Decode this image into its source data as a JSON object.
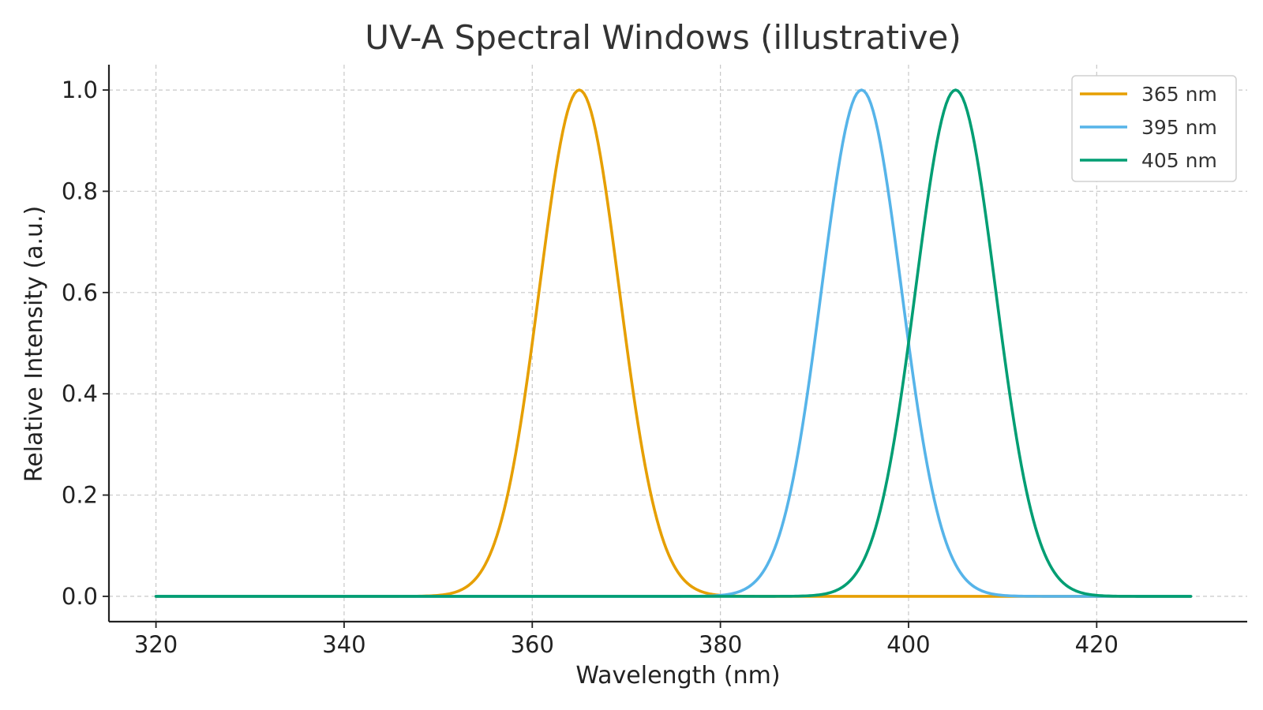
{
  "chart_data": {
    "type": "line",
    "title": "UV-A Spectral Windows (illustrative)",
    "xlabel": "Wavelength (nm)",
    "ylabel": "Relative Intensity (a.u.)",
    "xlim": [
      315,
      436
    ],
    "ylim": [
      -0.05,
      1.05
    ],
    "x_range": [
      320,
      430
    ],
    "xticks": [
      320,
      340,
      360,
      380,
      400,
      420
    ],
    "yticks": [
      0.0,
      0.2,
      0.4,
      0.6,
      0.8,
      1.0
    ],
    "xtick_labels": [
      "320",
      "340",
      "360",
      "380",
      "400",
      "420"
    ],
    "ytick_labels": [
      "0.0",
      "0.2",
      "0.4",
      "0.6",
      "0.8",
      "1.0"
    ],
    "grid": true,
    "legend_position": "top-right",
    "series": [
      {
        "name": "365 nm",
        "peak_nm": 365,
        "peak_value": 1.0,
        "width_sigma_nm": 4.25,
        "color": "#E69F00"
      },
      {
        "name": "395 nm",
        "peak_nm": 395,
        "peak_value": 1.0,
        "width_sigma_nm": 4.25,
        "color": "#56B4E9"
      },
      {
        "name": "405 nm",
        "peak_nm": 405,
        "peak_value": 1.0,
        "width_sigma_nm": 4.25,
        "color": "#009E73"
      }
    ]
  }
}
